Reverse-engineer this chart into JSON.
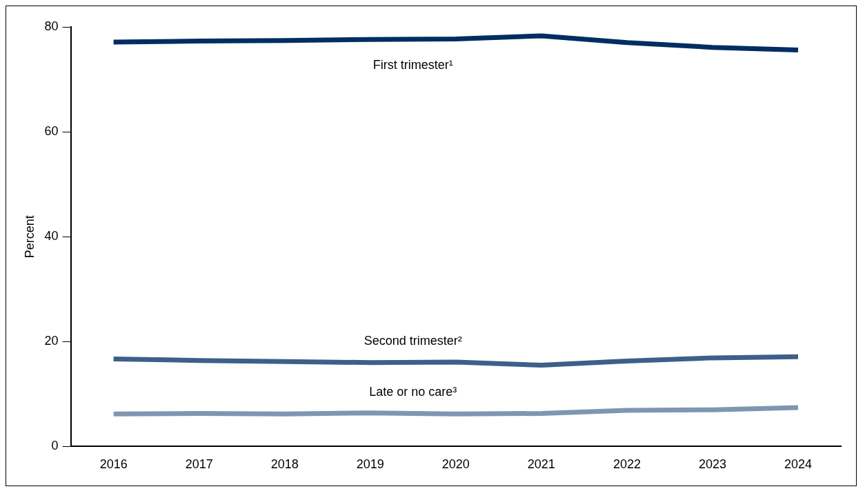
{
  "chart_data": {
    "type": "line",
    "ylabel": "Percent",
    "categories": [
      "2016",
      "2017",
      "2018",
      "2019",
      "2020",
      "2021",
      "2022",
      "2023",
      "2024"
    ],
    "ylim": [
      0,
      80
    ],
    "yticks": [
      0,
      20,
      40,
      60,
      80
    ],
    "grid": false,
    "legend": false,
    "marker": "none",
    "line_style": "solid",
    "series": [
      {
        "name": "First trimester¹",
        "color": "#002d62",
        "values": [
          77.1,
          77.3,
          77.4,
          77.6,
          77.7,
          78.3,
          77.0,
          76.1,
          75.6
        ]
      },
      {
        "name": "Second trimester²",
        "color": "#3e5f8a",
        "values": [
          16.7,
          16.4,
          16.2,
          16.0,
          16.1,
          15.5,
          16.3,
          16.9,
          17.1
        ]
      },
      {
        "name": "Late or no care³",
        "color": "#7f96b2",
        "values": [
          6.2,
          6.3,
          6.2,
          6.4,
          6.2,
          6.3,
          6.9,
          7.0,
          7.4
        ]
      }
    ]
  }
}
